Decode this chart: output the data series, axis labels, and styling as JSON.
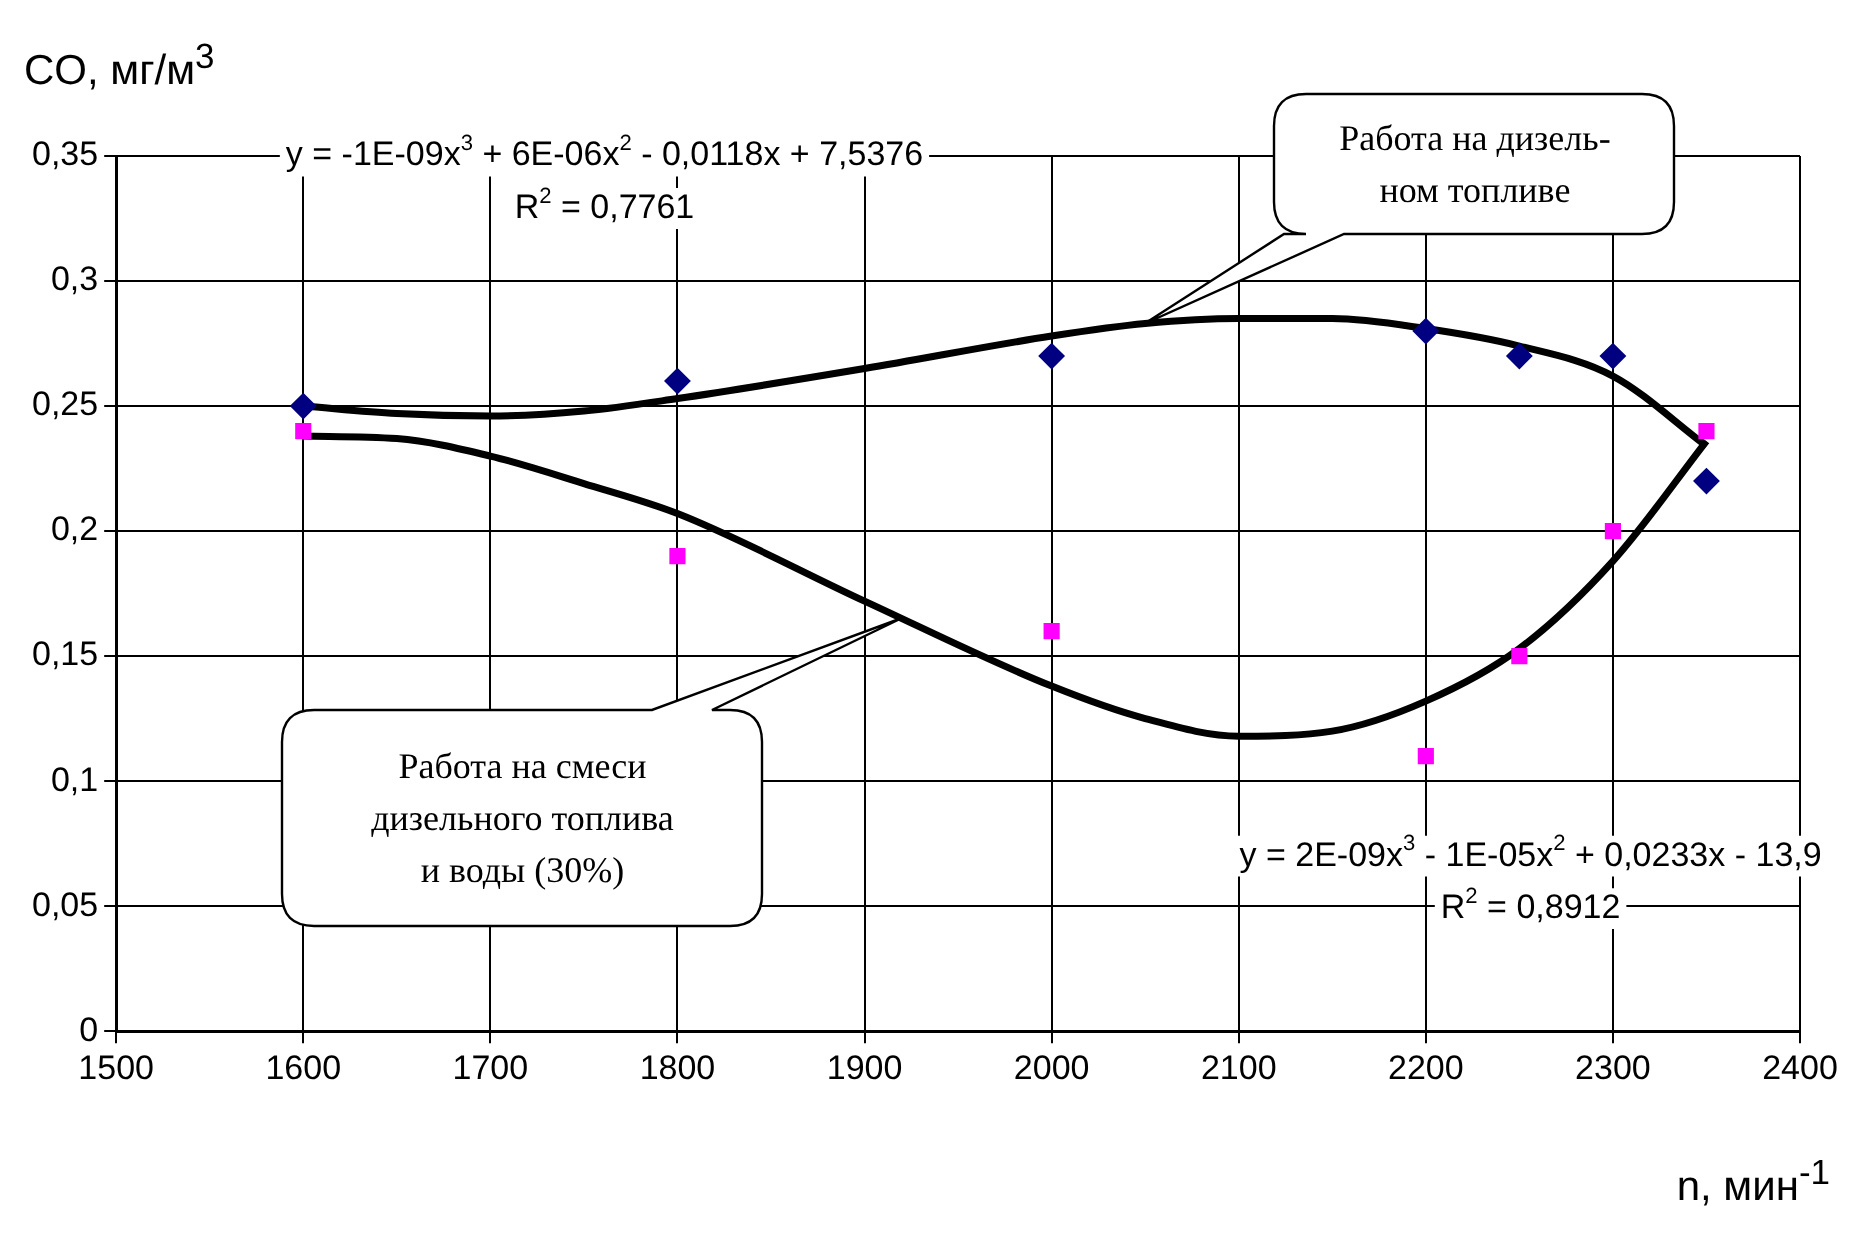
{
  "chart_data": {
    "type": "scatter",
    "xlabel": "n, мин$^{-1}$",
    "ylabel": "CO, мг/м$^{3}$",
    "xlim": [
      1500,
      2400
    ],
    "xticks": [
      1500,
      1600,
      1700,
      1800,
      1900,
      2000,
      2100,
      2200,
      2300,
      2400
    ],
    "ylim": [
      0,
      0.35
    ],
    "yticks": [
      0,
      {
        "value": 0.05,
        "label": "0,05"
      },
      {
        "value": 0.1,
        "label": "0,1"
      },
      {
        "value": 0.15,
        "label": "0,15"
      },
      {
        "value": 0.2,
        "label": "0,2"
      },
      {
        "value": 0.25,
        "label": "0,25"
      },
      {
        "value": 0.3,
        "label": "0,3"
      },
      {
        "value": 0.35,
        "label": "0,35"
      }
    ],
    "grid": true,
    "legend": false,
    "series": [
      {
        "color": "#000080",
        "marker": "diamond",
        "x": [
          1600,
          1800,
          2000,
          2200,
          2250,
          2300,
          2350
        ],
        "values": [
          0.25,
          0.26,
          0.27,
          0.28,
          0.27,
          0.27,
          0.22
        ]
      },
      {
        "color": "#ff00ff",
        "marker": "square",
        "x": [
          1600,
          1800,
          2000,
          2200,
          2250,
          2300,
          2350
        ],
        "values": [
          0.24,
          0.19,
          0.16,
          0.11,
          0.15,
          0.2,
          0.24
        ]
      },
      {
        "type": "line",
        "color": "#000000",
        "marker": "none",
        "x": [
          1600,
          1650,
          1700,
          1750,
          1800,
          1900,
          2000,
          2050,
          2100,
          2150,
          2200,
          2250,
          2300,
          2350
        ],
        "values": [
          0.25,
          0.247,
          0.246,
          0.248,
          0.253,
          0.265,
          0.278,
          0.283,
          0.285,
          0.285,
          0.281,
          0.274,
          0.262,
          0.234
        ]
      },
      {
        "type": "line",
        "color": "#000000",
        "marker": "none",
        "x": [
          1600,
          1650,
          1700,
          1750,
          1800,
          1900,
          2000,
          2050,
          2100,
          2150,
          2200,
          2250,
          2300,
          2350
        ],
        "values": [
          0.238,
          0.237,
          0.23,
          0.219,
          0.207,
          0.172,
          0.138,
          0.125,
          0.118,
          0.12,
          0.132,
          0.153,
          0.188,
          0.236
        ]
      }
    ],
    "annotations": [
      "y = -1E-09x$^{3}$ + 6E-06x$^{2}$ - 0,0118x + 7,5376",
      "R$^{2}$ = 0,7761",
      "y = 2E-09x$^{3}$ - 1E-05x$^{2}$ + 0,0233x - 13,9",
      "R$^{2}$ = 0,8912",
      "Работа на дизель-\nном топливе",
      "Работа на смеси\nдизельного топлива\nи воды (30%)"
    ]
  }
}
